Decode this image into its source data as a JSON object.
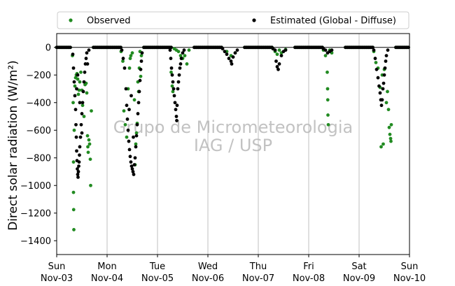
{
  "chart_data": {
    "type": "scatter",
    "ylabel": "Direct solar radiation (W/m²)",
    "ylim": [
      -1500,
      100
    ],
    "yticks": [
      0,
      -200,
      -400,
      -600,
      -800,
      -1000,
      -1200,
      -1400
    ],
    "xlim": [
      "2019-11-03",
      "2019-11-10"
    ],
    "x_ticks": [
      {
        "day": "Sun",
        "date": "Nov-03"
      },
      {
        "day": "Mon",
        "date": "Nov-04"
      },
      {
        "day": "Tue",
        "date": "Nov-05"
      },
      {
        "day": "Wed",
        "date": "Nov-06"
      },
      {
        "day": "Thu",
        "date": "Nov-07"
      },
      {
        "day": "Fri",
        "date": "Nov-08"
      },
      {
        "day": "Sat",
        "date": "Nov-09"
      },
      {
        "day": "Sun",
        "date": "Nov-10"
      }
    ],
    "grid": "vertical",
    "legend_position": "top",
    "watermark": [
      "Grupo de Micrometeorologia",
      "IAG / USP"
    ],
    "colors": {
      "Observed": "#228b22",
      "Estimated (Global - Diffuse)": "#000000"
    },
    "series": [
      {
        "name": "Observed",
        "points": [
          [
            "2019-11-03T07:30",
            -60
          ],
          [
            "2019-11-03T07:50",
            -400
          ],
          [
            "2019-11-03T08:00",
            -830
          ],
          [
            "2019-11-03T08:00",
            -1050
          ],
          [
            "2019-11-03T08:05",
            -1175
          ],
          [
            "2019-11-03T08:10",
            -1320
          ],
          [
            "2019-11-03T08:20",
            -600
          ],
          [
            "2019-11-03T08:40",
            -280
          ],
          [
            "2019-11-03T09:00",
            -220
          ],
          [
            "2019-11-03T09:20",
            -200
          ],
          [
            "2019-11-03T09:40",
            -190
          ],
          [
            "2019-11-03T10:00",
            -230
          ],
          [
            "2019-11-03T10:20",
            -340
          ],
          [
            "2019-11-03T10:40",
            -310
          ],
          [
            "2019-11-03T11:00",
            -250
          ],
          [
            "2019-11-03T11:30",
            -180
          ],
          [
            "2019-11-03T12:00",
            -310
          ],
          [
            "2019-11-03T12:20",
            -420
          ],
          [
            "2019-11-03T13:00",
            -500
          ],
          [
            "2019-11-03T13:30",
            -270
          ],
          [
            "2019-11-03T14:00",
            -260
          ],
          [
            "2019-11-03T14:20",
            -330
          ],
          [
            "2019-11-03T14:40",
            -640
          ],
          [
            "2019-11-03T14:50",
            -720
          ],
          [
            "2019-11-03T15:00",
            -760
          ],
          [
            "2019-11-03T15:20",
            -670
          ],
          [
            "2019-11-03T15:40",
            -700
          ],
          [
            "2019-11-03T16:00",
            -810
          ],
          [
            "2019-11-03T16:10",
            -1000
          ],
          [
            "2019-11-03T16:30",
            -460
          ],
          [
            "2019-11-04T06:40",
            -30
          ],
          [
            "2019-11-04T07:30",
            -100
          ],
          [
            "2019-11-04T08:00",
            -460
          ],
          [
            "2019-11-04T08:40",
            -560
          ],
          [
            "2019-11-04T09:20",
            -650
          ],
          [
            "2019-11-04T10:00",
            -300
          ],
          [
            "2019-11-04T10:40",
            -150
          ],
          [
            "2019-11-04T11:00",
            -80
          ],
          [
            "2019-11-04T11:20",
            -60
          ],
          [
            "2019-11-04T12:00",
            -40
          ],
          [
            "2019-11-04T13:00",
            -380
          ],
          [
            "2019-11-04T13:20",
            -850
          ],
          [
            "2019-11-04T13:40",
            -700
          ],
          [
            "2019-11-04T14:00",
            -620
          ],
          [
            "2019-11-04T14:20",
            -550
          ],
          [
            "2019-11-04T14:40",
            -250
          ],
          [
            "2019-11-04T15:00",
            -320
          ],
          [
            "2019-11-04T15:20",
            -150
          ],
          [
            "2019-11-04T15:40",
            -30
          ],
          [
            "2019-11-04T16:00",
            -210
          ],
          [
            "2019-11-04T16:20",
            -60
          ],
          [
            "2019-11-05T06:30",
            -180
          ],
          [
            "2019-11-05T07:00",
            -280
          ],
          [
            "2019-11-05T07:20",
            -320
          ],
          [
            "2019-11-05T08:00",
            -10
          ],
          [
            "2019-11-05T09:00",
            -20
          ],
          [
            "2019-11-05T10:00",
            -30
          ],
          [
            "2019-11-05T11:00",
            -60
          ],
          [
            "2019-11-05T12:00",
            -80
          ],
          [
            "2019-11-05T13:00",
            -60
          ],
          [
            "2019-11-05T14:00",
            -120
          ],
          [
            "2019-11-05T15:00",
            -20
          ],
          [
            "2019-11-06T09:00",
            -30
          ],
          [
            "2019-11-06T11:00",
            -60
          ],
          [
            "2019-11-06T13:00",
            -40
          ],
          [
            "2019-11-07T07:00",
            -10
          ],
          [
            "2019-11-07T08:00",
            -30
          ],
          [
            "2019-11-07T09:00",
            -50
          ],
          [
            "2019-11-07T10:00",
            -20
          ],
          [
            "2019-11-07T11:00",
            -40
          ],
          [
            "2019-11-07T13:00",
            -15
          ],
          [
            "2019-11-08T07:00",
            -20
          ],
          [
            "2019-11-08T08:00",
            -60
          ],
          [
            "2019-11-08T08:50",
            -180
          ],
          [
            "2019-11-08T09:00",
            -300
          ],
          [
            "2019-11-08T09:05",
            -380
          ],
          [
            "2019-11-08T09:10",
            -490
          ],
          [
            "2019-11-08T09:20",
            -560
          ],
          [
            "2019-11-08T10:00",
            -20
          ],
          [
            "2019-11-08T11:00",
            -40
          ],
          [
            "2019-11-09T07:00",
            -30
          ],
          [
            "2019-11-09T08:00",
            -110
          ],
          [
            "2019-11-09T09:00",
            -150
          ],
          [
            "2019-11-09T10:00",
            -290
          ],
          [
            "2019-11-09T11:00",
            -200
          ],
          [
            "2019-11-09T12:00",
            -160
          ],
          [
            "2019-11-09T13:00",
            -400
          ],
          [
            "2019-11-09T13:30",
            -320
          ],
          [
            "2019-11-09T14:00",
            -450
          ],
          [
            "2019-11-09T14:20",
            -580
          ],
          [
            "2019-11-09T14:40",
            -630
          ],
          [
            "2019-11-09T15:00",
            -660
          ],
          [
            "2019-11-09T15:10",
            -680
          ],
          [
            "2019-11-09T15:20",
            -560
          ],
          [
            "2019-11-09T10:30",
            -720
          ],
          [
            "2019-11-09T11:30",
            -700
          ]
        ]
      },
      {
        "name": "Estimated (Global - Diffuse)",
        "points": [
          [
            "2019-11-03T07:40",
            -50
          ],
          [
            "2019-11-03T08:00",
            -150
          ],
          [
            "2019-11-03T08:20",
            -250
          ],
          [
            "2019-11-03T08:40",
            -350
          ],
          [
            "2019-11-03T09:00",
            -450
          ],
          [
            "2019-11-03T09:10",
            -560
          ],
          [
            "2019-11-03T09:20",
            -650
          ],
          [
            "2019-11-03T09:30",
            -750
          ],
          [
            "2019-11-03T09:40",
            -820
          ],
          [
            "2019-11-03T09:50",
            -880
          ],
          [
            "2019-11-03T10:00",
            -920
          ],
          [
            "2019-11-03T10:10",
            -940
          ],
          [
            "2019-11-03T10:20",
            -900
          ],
          [
            "2019-11-03T10:30",
            -860
          ],
          [
            "2019-11-03T10:40",
            -830
          ],
          [
            "2019-11-03T10:50",
            -780
          ],
          [
            "2019-11-03T11:00",
            -720
          ],
          [
            "2019-11-03T11:20",
            -650
          ],
          [
            "2019-11-03T11:40",
            -560
          ],
          [
            "2019-11-03T12:00",
            -480
          ],
          [
            "2019-11-03T12:20",
            -400
          ],
          [
            "2019-11-03T12:40",
            -320
          ],
          [
            "2019-11-03T13:00",
            -250
          ],
          [
            "2019-11-03T13:20",
            -180
          ],
          [
            "2019-11-03T13:40",
            -120
          ],
          [
            "2019-11-03T14:00",
            -80
          ],
          [
            "2019-11-03T14:20",
            -40
          ],
          [
            "2019-11-03T09:30",
            -300
          ],
          [
            "2019-11-03T10:00",
            -200
          ],
          [
            "2019-11-03T11:00",
            -400
          ],
          [
            "2019-11-03T12:00",
            -620
          ],
          [
            "2019-11-03T14:40",
            -120
          ],
          [
            "2019-11-03T15:20",
            -20
          ],
          [
            "2019-11-04T07:00",
            -20
          ],
          [
            "2019-11-04T07:40",
            -80
          ],
          [
            "2019-11-04T08:20",
            -150
          ],
          [
            "2019-11-04T09:00",
            -300
          ],
          [
            "2019-11-04T09:20",
            -420
          ],
          [
            "2019-11-04T09:40",
            -520
          ],
          [
            "2019-11-04T10:00",
            -600
          ],
          [
            "2019-11-04T10:20",
            -680
          ],
          [
            "2019-11-04T10:40",
            -740
          ],
          [
            "2019-11-04T11:00",
            -790
          ],
          [
            "2019-11-04T11:20",
            -830
          ],
          [
            "2019-11-04T11:40",
            -860
          ],
          [
            "2019-11-04T12:00",
            -880
          ],
          [
            "2019-11-04T12:20",
            -900
          ],
          [
            "2019-11-04T12:40",
            -920
          ],
          [
            "2019-11-04T13:00",
            -850
          ],
          [
            "2019-11-04T13:20",
            -800
          ],
          [
            "2019-11-04T13:40",
            -720
          ],
          [
            "2019-11-04T14:00",
            -640
          ],
          [
            "2019-11-04T14:20",
            -560
          ],
          [
            "2019-11-04T14:40",
            -480
          ],
          [
            "2019-11-04T15:00",
            -400
          ],
          [
            "2019-11-04T15:20",
            -320
          ],
          [
            "2019-11-04T15:40",
            -240
          ],
          [
            "2019-11-04T16:00",
            -160
          ],
          [
            "2019-11-04T16:20",
            -100
          ],
          [
            "2019-11-04T16:40",
            -40
          ],
          [
            "2019-11-04T10:30",
            -450
          ],
          [
            "2019-11-04T11:30",
            -350
          ],
          [
            "2019-11-04T12:30",
            -650
          ],
          [
            "2019-11-05T06:00",
            -20
          ],
          [
            "2019-11-05T06:20",
            -80
          ],
          [
            "2019-11-05T06:40",
            -150
          ],
          [
            "2019-11-05T07:00",
            -200
          ],
          [
            "2019-11-05T07:20",
            -250
          ],
          [
            "2019-11-05T07:40",
            -300
          ],
          [
            "2019-11-05T08:00",
            -350
          ],
          [
            "2019-11-05T08:20",
            -400
          ],
          [
            "2019-11-05T08:40",
            -450
          ],
          [
            "2019-11-05T09:00",
            -500
          ],
          [
            "2019-11-05T09:10",
            -530
          ],
          [
            "2019-11-05T09:20",
            -420
          ],
          [
            "2019-11-05T09:40",
            -300
          ],
          [
            "2019-11-05T10:00",
            -250
          ],
          [
            "2019-11-05T10:20",
            -200
          ],
          [
            "2019-11-05T10:40",
            -150
          ],
          [
            "2019-11-05T11:00",
            -120
          ],
          [
            "2019-11-05T11:20",
            -80
          ],
          [
            "2019-11-05T12:00",
            -40
          ],
          [
            "2019-11-05T12:40",
            -20
          ],
          [
            "2019-11-06T07:00",
            -10
          ],
          [
            "2019-11-06T08:00",
            -30
          ],
          [
            "2019-11-06T09:00",
            -50
          ],
          [
            "2019-11-06T10:00",
            -80
          ],
          [
            "2019-11-06T11:00",
            -100
          ],
          [
            "2019-11-06T11:20",
            -120
          ],
          [
            "2019-11-06T12:00",
            -70
          ],
          [
            "2019-11-06T13:00",
            -40
          ],
          [
            "2019-11-06T14:00",
            -20
          ],
          [
            "2019-11-07T07:00",
            -10
          ],
          [
            "2019-11-07T08:00",
            -20
          ],
          [
            "2019-11-07T08:30",
            -100
          ],
          [
            "2019-11-07T09:00",
            -140
          ],
          [
            "2019-11-07T09:30",
            -160
          ],
          [
            "2019-11-07T10:00",
            -120
          ],
          [
            "2019-11-07T11:00",
            -60
          ],
          [
            "2019-11-07T12:00",
            -30
          ],
          [
            "2019-11-07T13:00",
            -20
          ],
          [
            "2019-11-08T07:00",
            -10
          ],
          [
            "2019-11-08T08:00",
            -20
          ],
          [
            "2019-11-08T09:00",
            -40
          ],
          [
            "2019-11-08T10:00",
            -30
          ],
          [
            "2019-11-08T11:00",
            -20
          ],
          [
            "2019-11-09T07:00",
            -20
          ],
          [
            "2019-11-09T07:40",
            -80
          ],
          [
            "2019-11-09T08:20",
            -160
          ],
          [
            "2019-11-09T09:00",
            -220
          ],
          [
            "2019-11-09T09:30",
            -280
          ],
          [
            "2019-11-09T10:00",
            -330
          ],
          [
            "2019-11-09T10:20",
            -380
          ],
          [
            "2019-11-09T10:40",
            -420
          ],
          [
            "2019-11-09T11:00",
            -380
          ],
          [
            "2019-11-09T11:20",
            -300
          ],
          [
            "2019-11-09T11:40",
            -260
          ],
          [
            "2019-11-09T12:00",
            -200
          ],
          [
            "2019-11-09T12:20",
            -150
          ],
          [
            "2019-11-09T12:40",
            -100
          ],
          [
            "2019-11-09T13:00",
            -60
          ],
          [
            "2019-11-09T13:40",
            -20
          ]
        ]
      }
    ]
  }
}
